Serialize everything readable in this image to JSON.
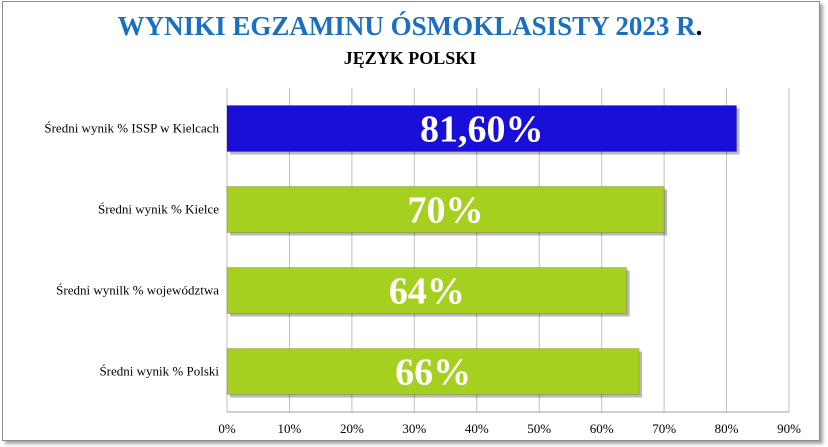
{
  "chart_data": {
    "type": "bar",
    "orientation": "horizontal",
    "title": "WYNIKI EGZAMINU ÓSMOKLASISTY 2023 R",
    "title_dot": ".",
    "subtitle": "JĘZYK POLSKI",
    "categories": [
      "Średni wynik % ISSP w Kielcach",
      "Średni wynik % Kielce",
      "Średni wynilk % województwa",
      "Średni wynik % Polski"
    ],
    "values": [
      81.6,
      70,
      64,
      66
    ],
    "value_labels": [
      "81,60%",
      "70%",
      "64%",
      "66%"
    ],
    "bar_colors": [
      "#1a0fd8",
      "#a6cf20",
      "#a6cf20",
      "#a6cf20"
    ],
    "x_ticks": [
      "0%",
      "10%",
      "20%",
      "30%",
      "40%",
      "50%",
      "60%",
      "70%",
      "80%",
      "90%"
    ],
    "xlim": [
      0,
      90
    ],
    "grid": true,
    "legend": "none",
    "colors": {
      "title": "#1a6fc0",
      "subtitle": "#000000",
      "grid": "#bfbfbf"
    }
  }
}
